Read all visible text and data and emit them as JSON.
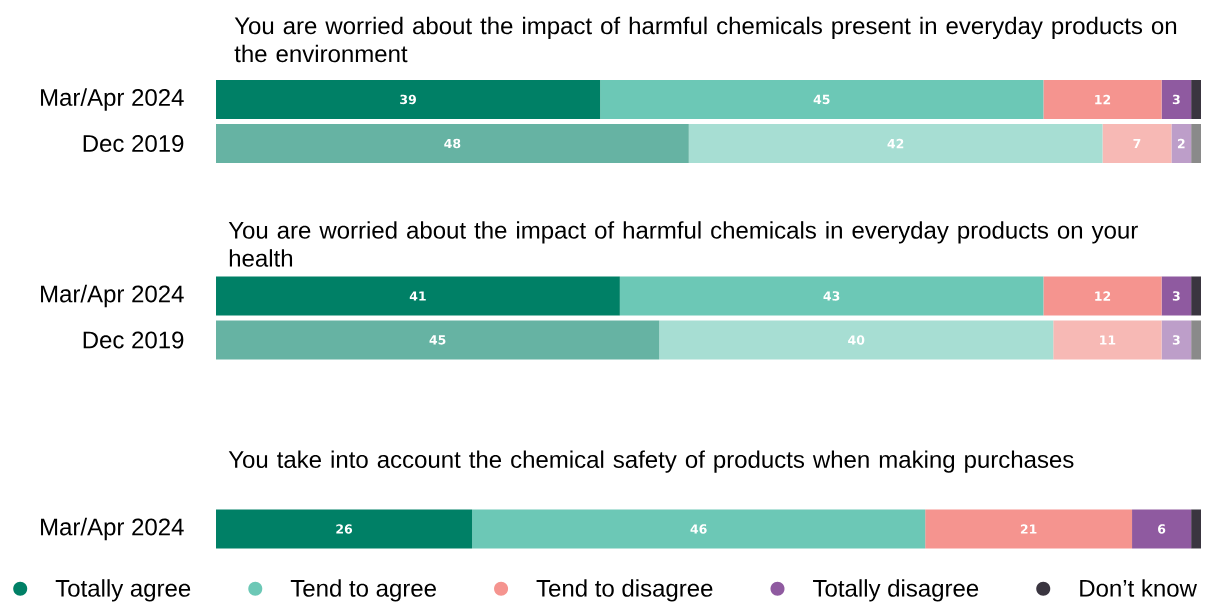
{
  "chart_data": [
    {
      "type": "bar",
      "orientation": "horizontal",
      "stacked": true,
      "title": "You are worried about the impact of harmful chemicals present in everyday products on the environment",
      "categories": [
        "Mar/Apr 2024",
        "Dec 2019"
      ],
      "tick_labels": "y",
      "series": [
        {
          "colors": [
            "#008066",
            "#66b3a3"
          ],
          "values": [
            39,
            48
          ],
          "value_labels": [
            "39",
            "48"
          ]
        },
        {
          "colors": [
            "#6cc8b6",
            "#a7ded3"
          ],
          "values": [
            45,
            42
          ],
          "value_labels": [
            "45",
            "42"
          ]
        },
        {
          "colors": [
            "#f5948f",
            "#f7b9b5"
          ],
          "values": [
            12,
            7
          ],
          "value_labels": [
            "12",
            "7"
          ]
        },
        {
          "colors": [
            "#8f5aa0",
            "#bd9ec9"
          ],
          "values": [
            3,
            2
          ],
          "value_labels": [
            "3",
            "2"
          ]
        },
        {
          "colors": [
            "#3a3540",
            "#8a8a8a"
          ],
          "values": [
            1,
            1
          ]
        }
      ]
    },
    {
      "type": "bar",
      "orientation": "horizontal",
      "stacked": true,
      "title": "You are worried about the impact of harmful chemicals in everyday products on your health",
      "categories": [
        "Mar/Apr 2024",
        "Dec 2019"
      ],
      "tick_labels": "y",
      "series": [
        {
          "colors": [
            "#008066",
            "#66b3a3"
          ],
          "values": [
            41,
            45
          ],
          "value_labels": [
            "41",
            "45"
          ]
        },
        {
          "colors": [
            "#6cc8b6",
            "#a7ded3"
          ],
          "values": [
            43,
            40
          ],
          "value_labels": [
            "43",
            "40"
          ]
        },
        {
          "colors": [
            "#f5948f",
            "#f7b9b5"
          ],
          "values": [
            12,
            11
          ],
          "value_labels": [
            "12",
            "11"
          ]
        },
        {
          "colors": [
            "#8f5aa0",
            "#bd9ec9"
          ],
          "values": [
            3,
            3
          ],
          "value_labels": [
            "3",
            "3"
          ]
        },
        {
          "colors": [
            "#3a3540",
            "#8a8a8a"
          ],
          "values": [
            1,
            1
          ]
        }
      ]
    },
    {
      "type": "bar",
      "orientation": "horizontal",
      "stacked": true,
      "title": "You take into account the chemical safety of products when making purchases",
      "categories": [
        "Mar/Apr 2024"
      ],
      "tick_labels": "y",
      "legend": "bottom",
      "series": [
        {
          "name": "Totally agree",
          "color": "#008066",
          "values": [
            26
          ],
          "value_labels": [
            "26"
          ]
        },
        {
          "name": "Tend to agree",
          "color": "#6cc8b6",
          "values": [
            46
          ],
          "value_labels": [
            "46"
          ]
        },
        {
          "name": "Tend to disagree",
          "color": "#f5948f",
          "values": [
            21
          ],
          "value_labels": [
            "21"
          ]
        },
        {
          "name": "Totally disagree",
          "color": "#8f5aa0",
          "values": [
            6
          ],
          "value_labels": [
            "6"
          ]
        },
        {
          "name": "Don’t know",
          "color": "#3a3540",
          "values": [
            1
          ]
        }
      ]
    }
  ]
}
